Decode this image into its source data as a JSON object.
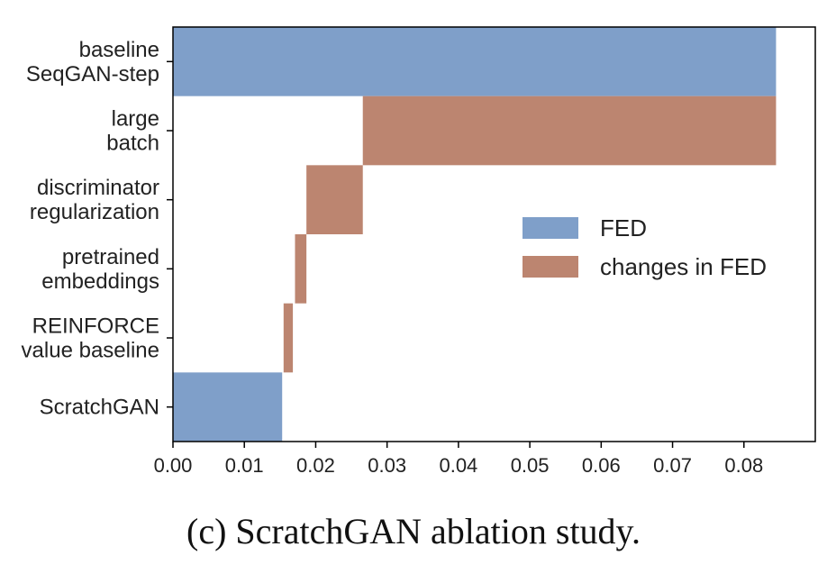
{
  "caption": "(c)  ScratchGAN ablation study.",
  "colors": {
    "fed": "#7f9fc9",
    "changes": "#bc8570"
  },
  "legend": {
    "placement": "center-right",
    "items": [
      {
        "label": "FED",
        "color_key": "fed"
      },
      {
        "label": "changes in FED",
        "color_key": "changes"
      }
    ]
  },
  "chart_data": {
    "type": "bar",
    "orientation": "horizontal",
    "style": "waterfall",
    "categories": [
      [
        "baseline",
        "SeqGAN-step"
      ],
      [
        "large",
        "batch"
      ],
      [
        "discriminator",
        "regularization"
      ],
      [
        "pretrained",
        "embeddings"
      ],
      [
        "REINFORCE",
        "value baseline"
      ],
      [
        "ScratchGAN"
      ]
    ],
    "bars": [
      {
        "start": 0.0,
        "end": 0.0845,
        "series": "FED"
      },
      {
        "start": 0.0266,
        "end": 0.0845,
        "series": "changes in FED"
      },
      {
        "start": 0.0187,
        "end": 0.0266,
        "series": "changes in FED"
      },
      {
        "start": 0.0171,
        "end": 0.0187,
        "series": "changes in FED"
      },
      {
        "start": 0.0155,
        "end": 0.0168,
        "series": "changes in FED"
      },
      {
        "start": 0.0,
        "end": 0.0153,
        "series": "FED"
      }
    ],
    "xticks": [
      "0.00",
      "0.01",
      "0.02",
      "0.03",
      "0.04",
      "0.05",
      "0.06",
      "0.07",
      "0.08"
    ],
    "xlim": [
      0,
      0.09
    ],
    "grid": false
  }
}
